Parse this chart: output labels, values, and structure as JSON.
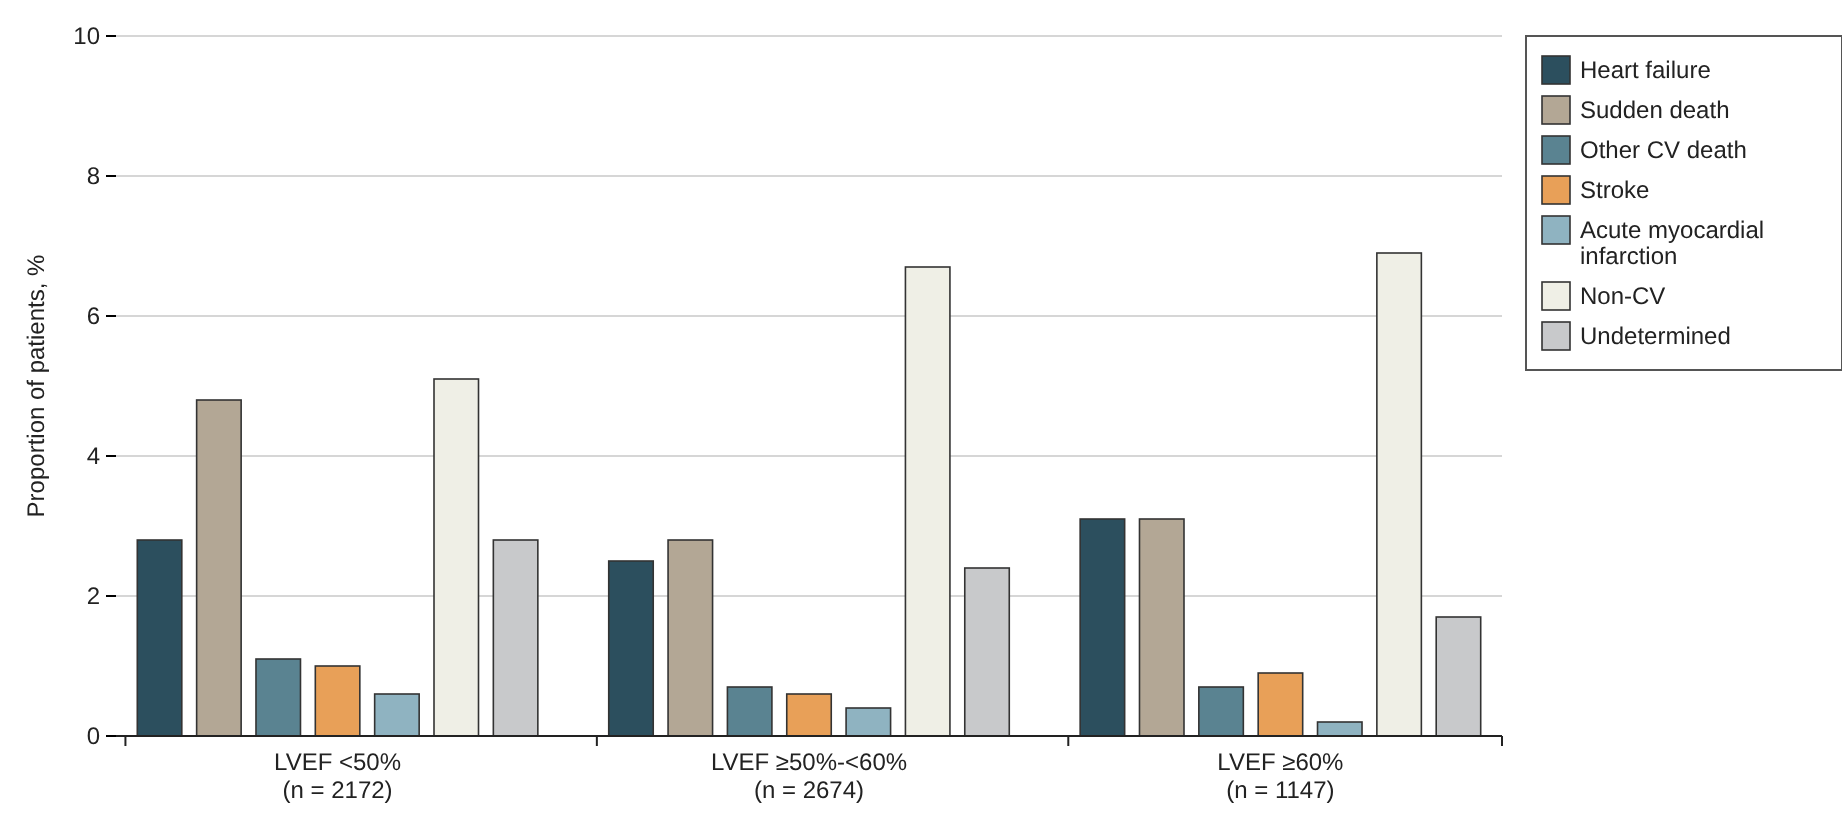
{
  "chart_data": {
    "type": "bar",
    "ylabel": "Proportion of patients, %",
    "categories": [
      "LVEF <50%\n(n = 2172)",
      "LVEF ≥50%-<60%\n(n = 2674)",
      "LVEF ≥60%\n(n = 1147)"
    ],
    "series": [
      {
        "name": "Heart failure",
        "color": "#2c4f5e",
        "values": [
          2.8,
          2.5,
          3.1
        ]
      },
      {
        "name": "Sudden death",
        "color": "#b3a795",
        "values": [
          4.8,
          2.8,
          3.1
        ]
      },
      {
        "name": "Other CV death",
        "color": "#5a8391",
        "values": [
          1.1,
          0.7,
          0.7
        ]
      },
      {
        "name": "Stroke",
        "color": "#e8a058",
        "values": [
          1.0,
          0.6,
          0.9
        ]
      },
      {
        "name": "Acute myocardial infarction",
        "color": "#8fb3c1",
        "values": [
          0.6,
          0.4,
          0.2
        ]
      },
      {
        "name": "Non-CV",
        "color": "#efefe6",
        "values": [
          5.1,
          6.7,
          6.9
        ]
      },
      {
        "name": "Undetermined",
        "color": "#c8c9cb",
        "values": [
          2.8,
          2.4,
          1.7
        ]
      }
    ],
    "ylim": [
      0,
      10
    ],
    "yticks": [
      0,
      2,
      4,
      6,
      8,
      10
    ],
    "grid": "y",
    "legend": "top right"
  }
}
